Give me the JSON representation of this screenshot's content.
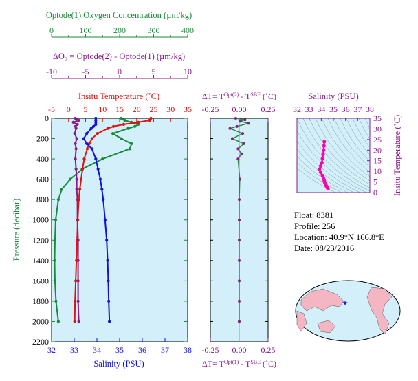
{
  "colors": {
    "oxygen": "#1a8a3a",
    "delta_o2": "#8a1a8a",
    "temperature": "#e01010",
    "salinity": "#1010dd",
    "dT": "#8a1a8a",
    "ts_panel": "#8a1a8a",
    "ts_points": "#ff00aa",
    "plot_bg": "#d2effa"
  },
  "info": {
    "float": "Float:  8381",
    "profile": "Profile:  256",
    "location": "Location:  40.9°N  166.8°E",
    "date": "Date:  08/23/2016"
  },
  "chart_data": [
    {
      "type": "line",
      "name": "main_profile",
      "ylabel": "Pressure (decibar)",
      "ylim": [
        2200,
        0
      ],
      "yticks": [
        "0",
        "200",
        "400",
        "600",
        "800",
        "1000",
        "1200",
        "1400",
        "1600",
        "1800",
        "2000",
        "2200"
      ],
      "pressure": [
        0,
        20,
        40,
        60,
        80,
        100,
        150,
        200,
        250,
        300,
        400,
        500,
        600,
        700,
        800,
        1000,
        1200,
        1400,
        1600,
        1800,
        2000
      ],
      "axes": {
        "oxygen": {
          "title": "Optode(1) Oxygen Concentration (µm/kg)",
          "xlim": [
            0,
            400
          ],
          "ticks": [
            "0",
            "100",
            "200",
            "300",
            "400"
          ]
        },
        "delta_o2": {
          "title": "ΔO₂ = Optode(2) - Optode(1)   (µm/kg)",
          "xlim": [
            -10,
            10
          ],
          "ticks": [
            "-10",
            "-5",
            "0",
            "5",
            "10"
          ]
        },
        "temperature": {
          "title": "Insitu Temperature (˚C)",
          "xlim": [
            -5,
            35
          ],
          "ticks": [
            "-5",
            "0",
            "5",
            "10",
            "15",
            "20",
            "25",
            "30",
            "35"
          ]
        },
        "salinity": {
          "title": "Salinity (PSU)",
          "xlim": [
            32,
            38
          ],
          "ticks": [
            "32",
            "33",
            "34",
            "35",
            "36",
            "37",
            "38"
          ]
        }
      },
      "series": [
        {
          "key": "oxygen",
          "values": [
            205,
            215,
            235,
            255,
            245,
            225,
            180,
            205,
            235,
            230,
            150,
            90,
            55,
            30,
            20,
            12,
            10,
            9,
            10,
            13,
            20
          ]
        },
        {
          "key": "delta_o2",
          "values": [
            -6.5,
            -6.0,
            -6.8,
            -6.2,
            -6.5,
            -6.4,
            -6.6,
            -6.3,
            -6.5,
            -6.4,
            -6.5,
            -6.4,
            -6.3,
            -6.3,
            -6.2,
            -6.2,
            -6.1,
            -6.1,
            -6.1,
            -6.1,
            -6.0
          ]
        },
        {
          "key": "temperature",
          "values": [
            24.2,
            23.8,
            20.5,
            16.2,
            13.2,
            11.5,
            8.5,
            6.9,
            6.1,
            5.5,
            4.6,
            4.1,
            3.7,
            3.3,
            3.0,
            2.7,
            2.5,
            2.3,
            2.1,
            1.9,
            1.8
          ]
        },
        {
          "key": "salinity",
          "values": [
            33.95,
            33.95,
            33.95,
            33.95,
            33.85,
            33.75,
            33.55,
            33.42,
            33.55,
            33.78,
            33.95,
            34.05,
            34.15,
            34.22,
            34.28,
            34.36,
            34.43,
            34.47,
            34.5,
            34.52,
            34.55
          ]
        }
      ]
    },
    {
      "type": "line",
      "name": "delta_t",
      "top_title": "ΔT= T^Opt(2) - T^SBE (˚C)",
      "bottom_title": "ΔT= T^Opt(1) - T^SBE (˚C)",
      "xlim": [
        -0.25,
        0.25
      ],
      "ticks": [
        "-0.25",
        "0.00",
        "0.25"
      ],
      "ylim": [
        2200,
        0
      ],
      "pressure": [
        0,
        15,
        30,
        50,
        80,
        100,
        150,
        200,
        250,
        300,
        350,
        400,
        600,
        800,
        1000,
        1200,
        1400,
        1600,
        1800,
        2000
      ],
      "series": [
        {
          "key": "dT",
          "values": [
            -0.03,
            0.05,
            0.01,
            0.08,
            -0.02,
            -0.08,
            0.03,
            -0.06,
            0.04,
            -0.01,
            0.02,
            -0.01,
            0.005,
            0.0,
            0.0,
            0.0,
            0.0,
            0.0,
            0.0,
            0.0
          ]
        }
      ]
    },
    {
      "type": "scatter",
      "name": "ts_diagram",
      "title": "Salinity (PSU)",
      "ylabel": "Insitu Temperature (˚C)",
      "xlim": [
        32,
        38
      ],
      "ylim": [
        0,
        35
      ],
      "xticks": [
        "32",
        "33",
        "34",
        "35",
        "36",
        "37",
        "38"
      ],
      "yticks": [
        "0",
        "5",
        "10",
        "15",
        "20",
        "25",
        "30",
        "35"
      ],
      "x": [
        34.55,
        34.5,
        34.45,
        34.4,
        34.35,
        34.3,
        34.25,
        34.2,
        34.1,
        33.95,
        33.85,
        33.95,
        34.05,
        34.1,
        34.15,
        34.2,
        34.22,
        34.25
      ],
      "y": [
        1.8,
        2.3,
        2.7,
        3.3,
        3.8,
        4.5,
        5.5,
        6.5,
        8.0,
        9.5,
        11.0,
        12.5,
        14.0,
        16.0,
        18.0,
        20.0,
        22.0,
        24.0
      ]
    }
  ]
}
